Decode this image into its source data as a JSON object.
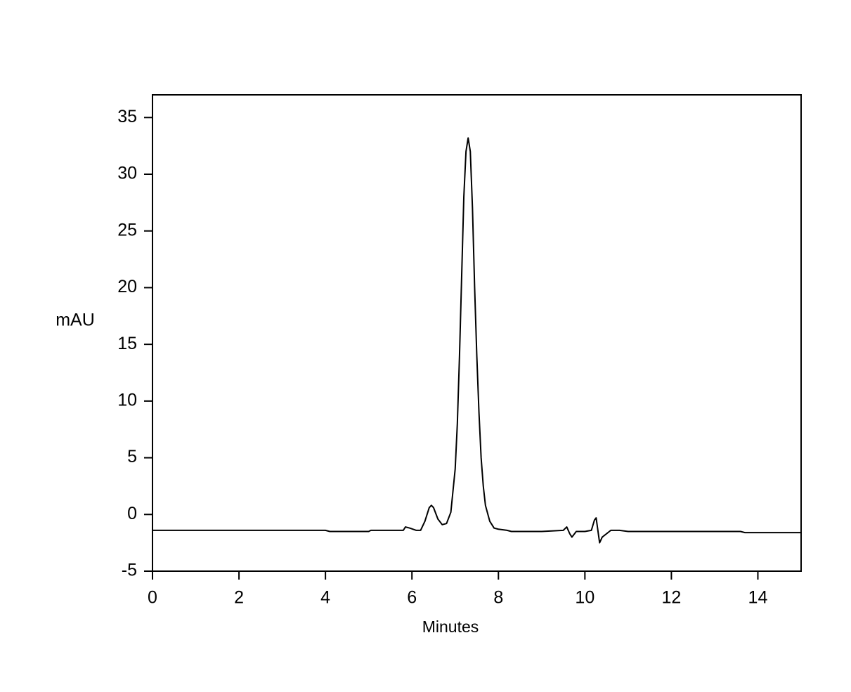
{
  "chart_data": {
    "type": "line",
    "y_label": "mAU",
    "x_label": "Minutes",
    "x": [
      0,
      1,
      2,
      3,
      4,
      4.1,
      5,
      5.05,
      5.8,
      5.85,
      5.95,
      6.1,
      6.2,
      6.3,
      6.4,
      6.45,
      6.5,
      6.6,
      6.7,
      6.8,
      6.9,
      7.0,
      7.05,
      7.1,
      7.15,
      7.2,
      7.25,
      7.3,
      7.35,
      7.4,
      7.45,
      7.5,
      7.55,
      7.6,
      7.65,
      7.7,
      7.8,
      7.9,
      8.0,
      8.2,
      8.3,
      9.0,
      9.5,
      9.58,
      9.65,
      9.7,
      9.8,
      10.0,
      10.15,
      10.22,
      10.26,
      10.3,
      10.34,
      10.4,
      10.6,
      10.8,
      11.0,
      13.6,
      13.7,
      15
    ],
    "values": [
      -1.4,
      -1.4,
      -1.4,
      -1.4,
      -1.4,
      -1.5,
      -1.5,
      -1.4,
      -1.4,
      -1.1,
      -1.2,
      -1.4,
      -1.4,
      -0.6,
      0.6,
      0.8,
      0.6,
      -0.4,
      -0.9,
      -0.8,
      0.2,
      4,
      8,
      14,
      21,
      28,
      32,
      33.2,
      32,
      27,
      20,
      14,
      9,
      5,
      2.5,
      0.8,
      -0.6,
      -1.2,
      -1.3,
      -1.4,
      -1.5,
      -1.5,
      -1.4,
      -1.1,
      -1.7,
      -2.0,
      -1.5,
      -1.5,
      -1.4,
      -0.5,
      -0.3,
      -1.4,
      -2.5,
      -2.0,
      -1.4,
      -1.4,
      -1.5,
      -1.5,
      -1.6,
      -1.6
    ],
    "color": "#000000",
    "xlim": [
      0,
      15
    ],
    "xticks": [
      0,
      2,
      4,
      6,
      8,
      10,
      12,
      14
    ],
    "ylim": [
      -5,
      37
    ],
    "yticks": [
      -5,
      0,
      5,
      10,
      15,
      20,
      25,
      30,
      35
    ]
  }
}
